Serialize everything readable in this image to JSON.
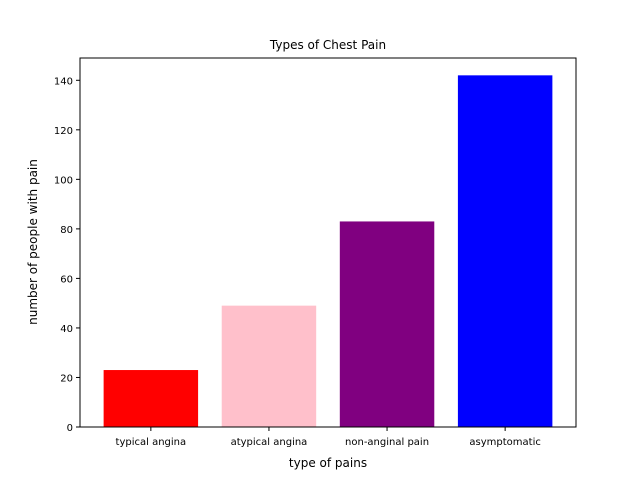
{
  "chart_data": {
    "type": "bar",
    "title": "Types of Chest Pain",
    "xlabel": "type of pains",
    "ylabel": "number of people with pain",
    "categories": [
      "typical angina",
      "atypical angina",
      "non-anginal pain",
      "asymptomatic"
    ],
    "values": [
      23,
      49,
      83,
      142
    ],
    "colors": [
      "#ff0000",
      "#ffc0cb",
      "#800080",
      "#0000ff"
    ],
    "ylim": [
      0,
      149
    ],
    "yticks": [
      0,
      20,
      40,
      60,
      80,
      100,
      120,
      140
    ],
    "grid": false,
    "legend": "none"
  }
}
